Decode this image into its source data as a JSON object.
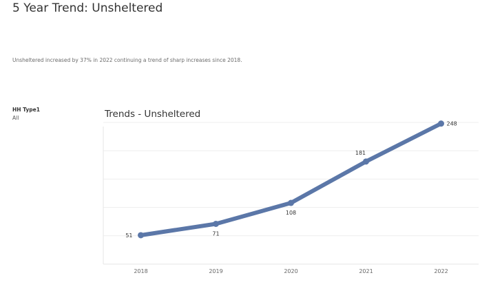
{
  "page": {
    "title": "5 Year Trend: Unsheltered",
    "summary": "Unsheltered increased by 37% in 2022 continuing a trend of sharp increases since 2018."
  },
  "filter": {
    "label": "HH Type1",
    "value": "All"
  },
  "chart_data": {
    "type": "line",
    "title": "Trends - Unsheltered",
    "x": [
      "2018",
      "2019",
      "2020",
      "2021",
      "2022"
    ],
    "series": [
      {
        "values": [
          51,
          71,
          108,
          181,
          248
        ]
      }
    ],
    "data_labels": [
      "51",
      "71",
      "108",
      "181",
      "248"
    ],
    "xlabel": "",
    "ylabel": "",
    "ylim": [
      0,
      250
    ],
    "grid": true,
    "line_color": "#5b77a8"
  }
}
